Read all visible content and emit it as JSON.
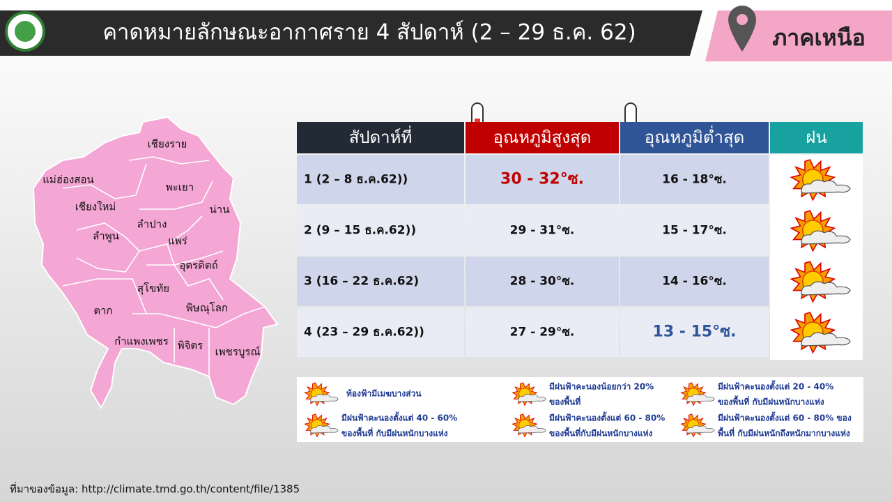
{
  "header": {
    "title": "คาดหมายลักษณะอากาศราย 4 สัปดาห์ (2 – 29 ธ.ค. 62)",
    "region": "ภาคเหนือ"
  },
  "map": {
    "provinces": [
      "เชียงราย",
      "แม่ฮ่องสอน",
      "พะเยา",
      "เชียงใหม่",
      "น่าน",
      "ลำปาง",
      "ลำพูน",
      "แพร่",
      "อุตรดิตถ์",
      "สุโขทัย",
      "ตาก",
      "พิษณุโลก",
      "กำแพงเพชร",
      "พิจิตร",
      "เพชรบูรณ์"
    ]
  },
  "table": {
    "headers": [
      "สัปดาห์ที่",
      "อุณหภูมิสูงสุด",
      "อุณหภูมิต่ำสุด",
      "ฝน"
    ],
    "rows": [
      [
        "1 (2 – 8 ธ.ค.62))",
        "30 - 32°ซ.",
        "16 - 18°ซ."
      ],
      [
        "2 (9 – 15 ธ.ค.62))",
        "29 - 31°ซ.",
        "15 - 17°ซ."
      ],
      [
        "3 (16 – 22 ธ.ค.62)",
        "28 - 30°ซ.",
        "14 - 16°ซ."
      ],
      [
        "4 (23 – 29 ธ.ค.62))",
        "27 - 29°ซ.",
        "13 - 15°ซ."
      ]
    ]
  },
  "legend": [
    {
      "lines": [
        "ท้องฟ้ามีเมฆบางส่วน"
      ]
    },
    {
      "lines": [
        "มีฝนฟ้าคะนองน้อยกว่า 20%",
        "ของพื้นที่"
      ]
    },
    {
      "lines": [
        "มีฝนฟ้าคะนองตั้งแต่ 20 - 40%",
        "ของพื้นที่ กับมีฝนหนักบางแห่ง"
      ]
    },
    {
      "lines": [
        "มีฝนฟ้าคะนองตั้งแต่ 40 - 60%",
        "ของพื้นที่ กับมีฝนหนักบางแห่ง"
      ]
    },
    {
      "lines": [
        "มีฝนฟ้าคะนองตั้งแต่ 60 - 80%",
        "ของพื้นที่กับมีฝนหนักบางแห่ง"
      ]
    },
    {
      "lines": [
        "มีฝนฟ้าคะนองตั้งแต่ 60 - 80% ของ",
        "พื้นที่ กับมีฝนหนักถึงหนักมากบางแห่ง"
      ]
    }
  ],
  "source": "ที่มาของข้อมูล: http://climate.tmd.go.th/content/file/1385"
}
